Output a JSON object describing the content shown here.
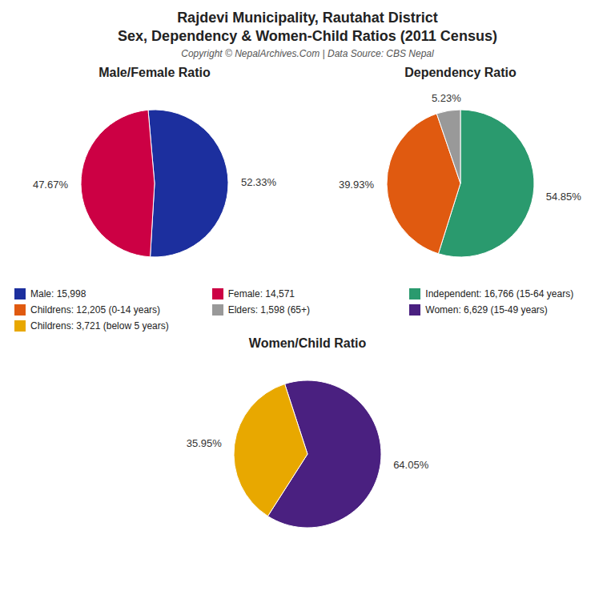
{
  "title": "Rajdevi Municipality, Rautahat District",
  "subtitle": "Sex, Dependency & Women-Child Ratios (2011 Census)",
  "annotations": [
    "Copyright © NepalArchives.Com | Data Source: CBS Nepal"
  ],
  "chart_data": [
    {
      "type": "pie",
      "title": "Male/Female Ratio",
      "categories": [
        "Male: 15,998",
        "Female: 14,571"
      ],
      "values": [
        52.33,
        47.67
      ],
      "value_labels": [
        "52.33%",
        "47.67%"
      ],
      "colors": [
        "#1c2f9e",
        "#cc0044"
      ],
      "data_labels": true,
      "legend": "bottom"
    },
    {
      "type": "pie",
      "title": "Dependency Ratio",
      "categories": [
        "Independent: 16,766 (15-64 years)",
        "Childrens: 12,205 (0-14 years)",
        "Elders: 1,598 (65+)"
      ],
      "values": [
        54.85,
        39.93,
        5.23
      ],
      "value_labels": [
        "54.85%",
        "39.93%",
        "5.23%"
      ],
      "colors": [
        "#2a9a6e",
        "#e05a10",
        "#999999"
      ],
      "data_labels": true,
      "legend": "bottom"
    },
    {
      "type": "pie",
      "title": "Women/Child Ratio",
      "categories": [
        "Women: 6,629 (15-49 years)",
        "Childrens: 3,721 (below 5 years)"
      ],
      "values": [
        64.05,
        35.95
      ],
      "value_labels": [
        "64.05%",
        "35.95%"
      ],
      "colors": [
        "#4a2080",
        "#e8a800"
      ],
      "data_labels": true,
      "legend": "top"
    }
  ]
}
